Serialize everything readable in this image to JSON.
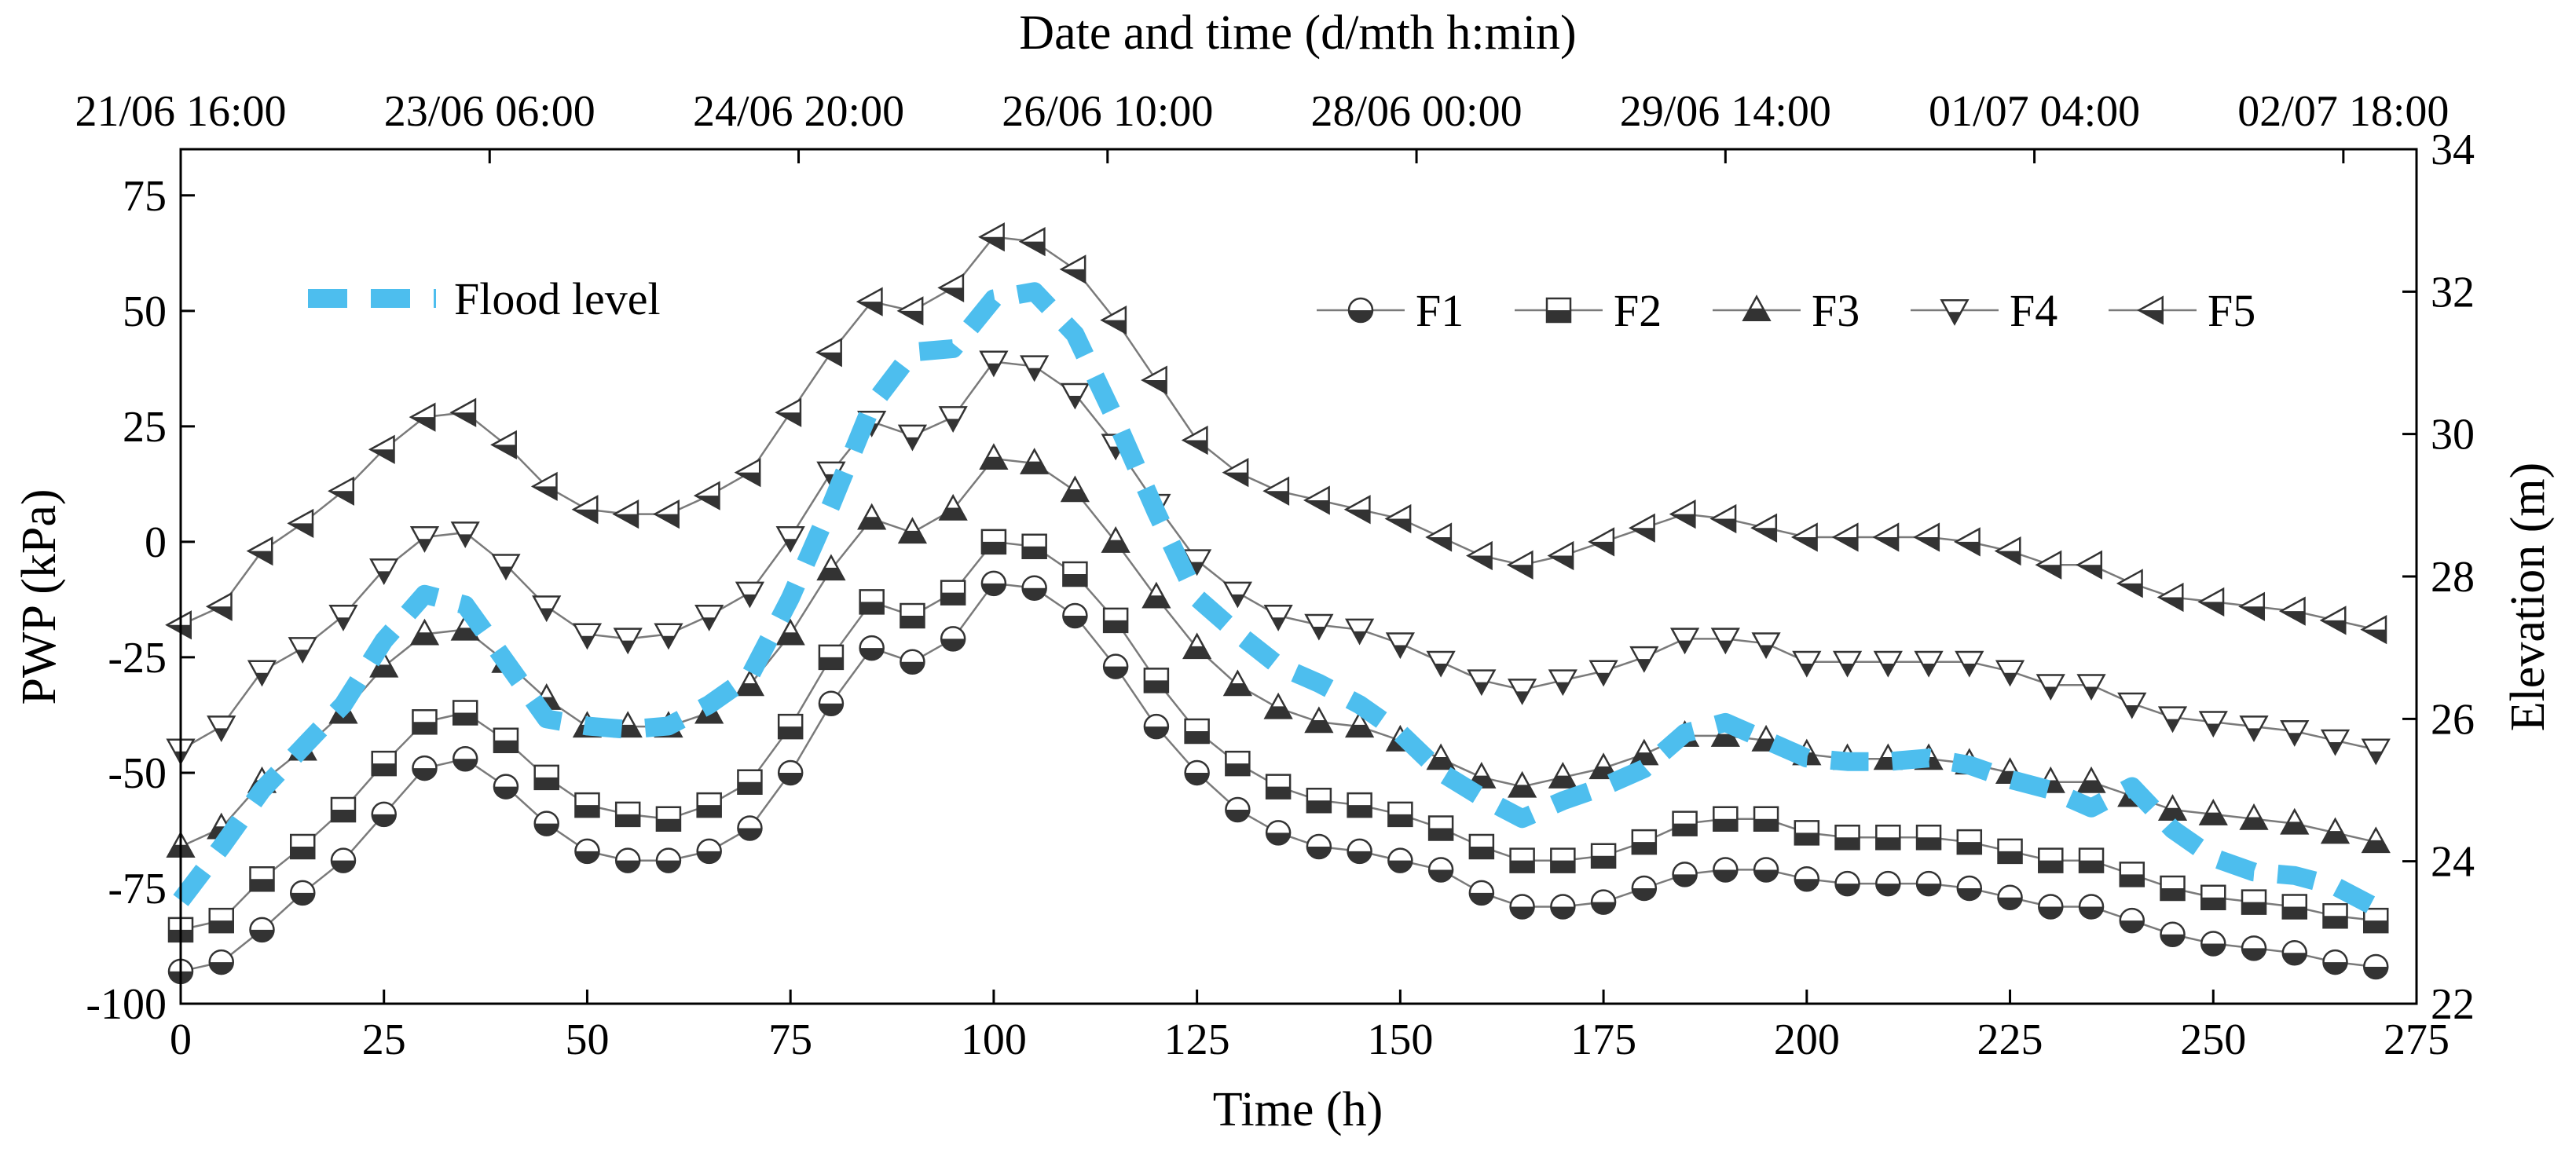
{
  "chart_data": {
    "type": "line",
    "title": "",
    "xlabel": "Time (h)",
    "ylabel": "PWP (kPa)",
    "y2label": "Elevation (m)",
    "x2label": "Date and time (d/mth h:min)",
    "xlim": [
      0,
      275
    ],
    "ylim": [
      -100,
      85
    ],
    "y2lim": [
      22,
      34
    ],
    "x_ticks": [
      0,
      25,
      50,
      75,
      100,
      125,
      150,
      175,
      200,
      225,
      250,
      275
    ],
    "y_ticks": [
      -100,
      -75,
      -50,
      -25,
      0,
      25,
      50,
      75
    ],
    "y2_ticks": [
      22,
      24,
      26,
      28,
      30,
      32,
      34
    ],
    "x2_ticks": [
      {
        "x": 0,
        "label": "21/06 16:00"
      },
      {
        "x": 38,
        "label": "23/06 06:00"
      },
      {
        "x": 76,
        "label": "24/06 20:00"
      },
      {
        "x": 114,
        "label": "26/06 10:00"
      },
      {
        "x": 152,
        "label": "28/06 00:00"
      },
      {
        "x": 190,
        "label": "29/06 14:00"
      },
      {
        "x": 228,
        "label": "01/07 04:00"
      },
      {
        "x": 266,
        "label": "02/07 18:00"
      }
    ],
    "x": [
      0,
      5,
      10,
      15,
      20,
      25,
      30,
      35,
      40,
      45,
      50,
      55,
      60,
      65,
      70,
      75,
      80,
      85,
      90,
      95,
      100,
      105,
      110,
      115,
      120,
      125,
      130,
      135,
      140,
      145,
      150,
      155,
      160,
      165,
      170,
      175,
      180,
      185,
      190,
      195,
      200,
      205,
      210,
      215,
      220,
      225,
      230,
      235,
      240,
      245,
      250,
      255,
      260,
      265,
      270
    ],
    "series": [
      {
        "name": "F1",
        "marker": "circle-half",
        "values": [
          -93,
          -91,
          -84,
          -76,
          -69,
          -59,
          -49,
          -47,
          -53,
          -61,
          -67,
          -69,
          -69,
          -67,
          -62,
          -50,
          -35,
          -23,
          -26,
          -21,
          -9,
          -10,
          -16,
          -27,
          -40,
          -50,
          -58,
          -63,
          -66,
          -67,
          -69,
          -71,
          -76,
          -79,
          -79,
          -78,
          -75,
          -72,
          -71,
          -71,
          -73,
          -74,
          -74,
          -74,
          -75,
          -77,
          -79,
          -79,
          -82,
          -85,
          -87,
          -88,
          -89,
          -91,
          -92
        ]
      },
      {
        "name": "F2",
        "marker": "square-half",
        "values": [
          -84,
          -82,
          -73,
          -66,
          -58,
          -48,
          -39,
          -37,
          -43,
          -51,
          -57,
          -59,
          -60,
          -57,
          -52,
          -40,
          -25,
          -13,
          -16,
          -11,
          0,
          -1,
          -7,
          -17,
          -30,
          -41,
          -48,
          -53,
          -56,
          -57,
          -59,
          -62,
          -66,
          -69,
          -69,
          -68,
          -65,
          -61,
          -60,
          -60,
          -63,
          -64,
          -64,
          -64,
          -65,
          -67,
          -69,
          -69,
          -72,
          -75,
          -77,
          -78,
          -79,
          -81,
          -82
        ]
      },
      {
        "name": "F3",
        "marker": "triangle-up-half",
        "values": [
          -66,
          -62,
          -52,
          -45,
          -37,
          -27,
          -20,
          -19,
          -26,
          -34,
          -40,
          -40,
          -40,
          -37,
          -31,
          -20,
          -6,
          5,
          2,
          7,
          18,
          17,
          11,
          0,
          -12,
          -23,
          -31,
          -36,
          -39,
          -40,
          -43,
          -47,
          -51,
          -53,
          -51,
          -49,
          -46,
          -42,
          -42,
          -43,
          -46,
          -47,
          -47,
          -47,
          -48,
          -50,
          -52,
          -52,
          -55,
          -58,
          -59,
          -60,
          -61,
          -63,
          -65
        ]
      },
      {
        "name": "F4",
        "marker": "triangle-down-half",
        "values": [
          -45,
          -40,
          -28,
          -23,
          -16,
          -6,
          1,
          2,
          -5,
          -14,
          -20,
          -21,
          -20,
          -16,
          -11,
          1,
          15,
          26,
          23,
          27,
          39,
          38,
          32,
          21,
          8,
          -4,
          -11,
          -16,
          -18,
          -19,
          -22,
          -26,
          -30,
          -32,
          -30,
          -28,
          -25,
          -21,
          -21,
          -22,
          -26,
          -26,
          -26,
          -26,
          -26,
          -28,
          -31,
          -31,
          -35,
          -38,
          -39,
          -40,
          -41,
          -43,
          -45
        ]
      },
      {
        "name": "F5",
        "marker": "triangle-left-half",
        "values": [
          -18,
          -14,
          -2,
          4,
          11,
          20,
          27,
          28,
          21,
          12,
          7,
          6,
          6,
          10,
          15,
          28,
          41,
          52,
          50,
          55,
          66,
          65,
          59,
          48,
          35,
          22,
          15,
          11,
          9,
          7,
          5,
          1,
          -3,
          -5,
          -3,
          0,
          3,
          6,
          5,
          3,
          1,
          1,
          1,
          1,
          0,
          -2,
          -5,
          -5,
          -9,
          -12,
          -13,
          -14,
          -15,
          -17,
          -19
        ]
      },
      {
        "name": "Flood level",
        "axis": "right",
        "style": "dashed-thick",
        "color": "#4DBEEE",
        "x": [
          0,
          5,
          10,
          15,
          20,
          25,
          30,
          35,
          40,
          45,
          50,
          55,
          60,
          65,
          70,
          75,
          80,
          85,
          90,
          95,
          100,
          105,
          110,
          115,
          120,
          125,
          130,
          135,
          140,
          145,
          150,
          155,
          160,
          165,
          170,
          175,
          180,
          185,
          190,
          195,
          200,
          205,
          210,
          215,
          220,
          225,
          230,
          235,
          240,
          245,
          250,
          255,
          260,
          265,
          270
        ],
        "values": [
          23.45,
          24.2,
          25.0,
          25.6,
          26.2,
          27.1,
          27.75,
          27.6,
          26.8,
          26.0,
          25.9,
          25.85,
          25.9,
          26.2,
          26.6,
          27.7,
          29.0,
          30.4,
          31.15,
          31.2,
          31.9,
          32.0,
          31.4,
          30.2,
          28.9,
          27.7,
          27.2,
          26.75,
          26.5,
          26.2,
          25.8,
          25.25,
          24.9,
          24.6,
          24.85,
          25.05,
          25.3,
          25.8,
          25.95,
          25.7,
          25.45,
          25.4,
          25.4,
          25.45,
          25.35,
          25.15,
          25.0,
          24.75,
          25.05,
          24.45,
          24.05,
          23.85,
          23.8,
          23.65,
          23.35
        ]
      }
    ],
    "legend": {
      "flood_label": "Flood level",
      "series_labels": [
        "F1",
        "F2",
        "F3",
        "F4",
        "F5"
      ],
      "placement": "top"
    },
    "colors": {
      "flood": "#4DBEEE",
      "line": "#7a7a7a",
      "marker_fill": "#333333",
      "axis": "#000000"
    }
  }
}
